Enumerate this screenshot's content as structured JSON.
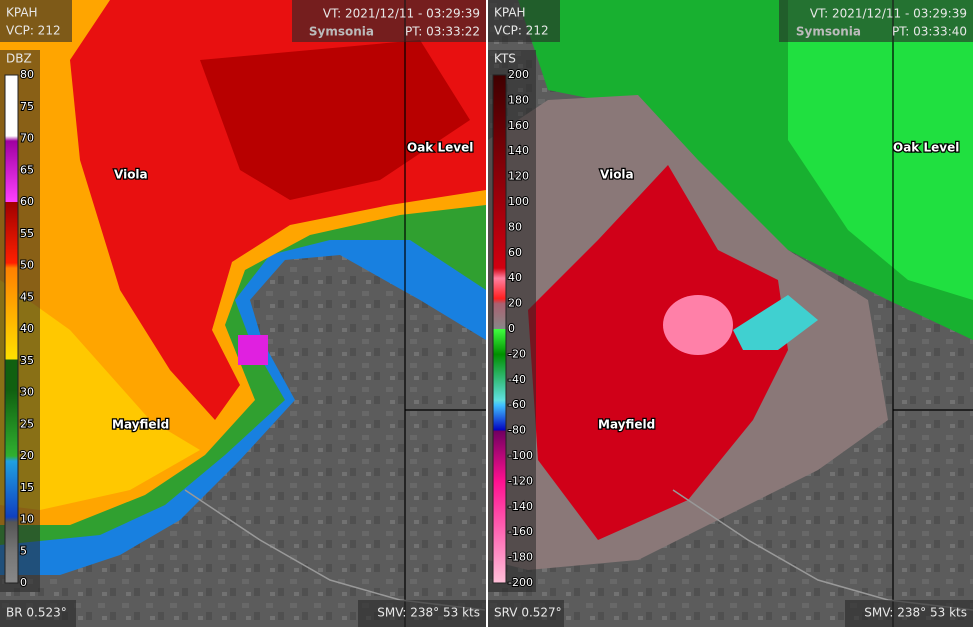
{
  "panels": [
    {
      "station": "KPAH",
      "vcp": "VCP: 212",
      "vt": "VT: 2021/12/11 - 03:29:39",
      "site": "Symsonia",
      "pt": "PT: 03:33:22",
      "unit": "DBZ",
      "scale": [
        80,
        75,
        70,
        65,
        60,
        55,
        50,
        45,
        40,
        35,
        30,
        25,
        20,
        15,
        10,
        5,
        0
      ],
      "product": "BR 0.523°",
      "smv": "SMV: 238° 53 kts",
      "places": [
        "Viola",
        "Oak Level",
        "Mayfield"
      ]
    },
    {
      "station": "KPAH",
      "vcp": "VCP: 212",
      "vt": "VT: 2021/12/11 - 03:29:39",
      "site": "Symsonia",
      "pt": "PT: 03:33:40",
      "unit": "KTS",
      "scale": [
        200,
        180,
        160,
        140,
        120,
        100,
        80,
        60,
        40,
        20,
        0,
        -20,
        -40,
        -60,
        -80,
        -100,
        -120,
        -140,
        -160,
        -180,
        -200
      ],
      "product": "SRV 0.527°",
      "smv": "SMV: 238° 53 kts",
      "places": [
        "Viola",
        "Oak Level",
        "Mayfield"
      ]
    }
  ]
}
